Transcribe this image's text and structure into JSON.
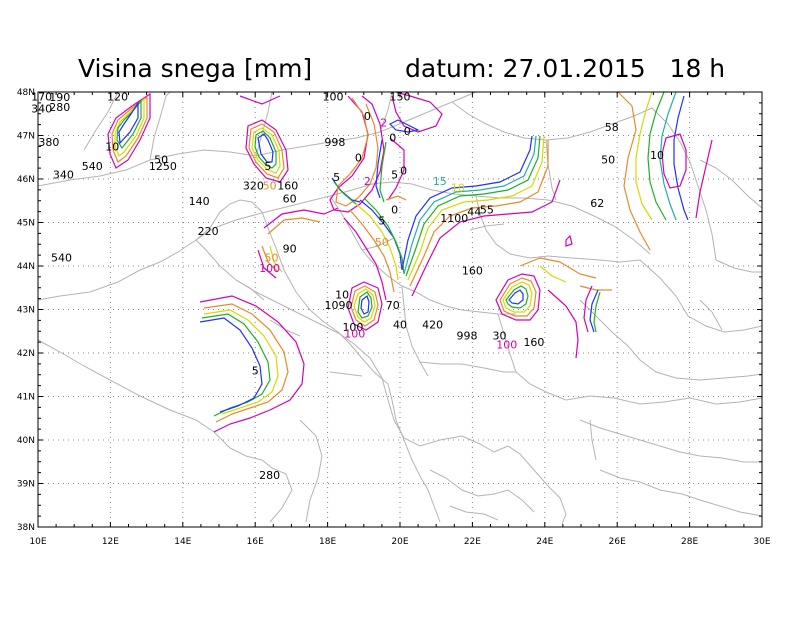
{
  "title": {
    "variable": "Visina snega [mm]",
    "date_label": "datum: 27.01.2015",
    "hour_label": "18 h"
  },
  "axes": {
    "lon_range": [
      10,
      30
    ],
    "lat_range": [
      38,
      48
    ],
    "x_ticks": [
      "10E",
      "12E",
      "14E",
      "16E",
      "18E",
      "20E",
      "22E",
      "24E",
      "26E",
      "28E",
      "30E"
    ],
    "y_ticks": [
      "38N",
      "39N",
      "40N",
      "41N",
      "42N",
      "43N",
      "44N",
      "45N",
      "46N",
      "47N",
      "48N"
    ],
    "grid": "dotted"
  },
  "colors": {
    "coast": "#b4b4b4",
    "c_magenta": "#d600b8",
    "c_orange": "#e88a2a",
    "c_yellow": "#d8d800",
    "c_green": "#20b020",
    "c_teal": "#20b0a0",
    "c_blue": "#2030ff",
    "c_purple": "#8a10d0"
  },
  "value_labels": [
    {
      "text": "190",
      "lon": 10.6,
      "lat": 47.88
    },
    {
      "text": "170",
      "lon": 10.1,
      "lat": 47.9
    },
    {
      "text": "340",
      "lon": 10.1,
      "lat": 47.62
    },
    {
      "text": "280",
      "lon": 10.6,
      "lat": 47.65
    },
    {
      "text": "120",
      "lon": 12.2,
      "lat": 47.9
    },
    {
      "text": "380",
      "lon": 10.3,
      "lat": 46.85
    },
    {
      "text": "540",
      "lon": 11.5,
      "lat": 46.3
    },
    {
      "text": "340",
      "lon": 10.7,
      "lat": 46.1
    },
    {
      "text": "50",
      "lon": 13.4,
      "lat": 46.45
    },
    {
      "text": "1250",
      "lon": 13.45,
      "lat": 46.3
    },
    {
      "text": "10",
      "lon": 12.05,
      "lat": 46.75
    },
    {
      "text": "140",
      "lon": 14.45,
      "lat": 45.5
    },
    {
      "text": "220",
      "lon": 14.7,
      "lat": 44.8
    },
    {
      "text": "540",
      "lon": 10.65,
      "lat": 44.2
    },
    {
      "text": "320",
      "lon": 15.95,
      "lat": 45.85
    },
    {
      "text": "160",
      "lon": 16.9,
      "lat": 45.85
    },
    {
      "text": "60",
      "lon": 16.95,
      "lat": 45.55
    },
    {
      "text": "5",
      "lon": 16.35,
      "lat": 46.3
    },
    {
      "text": "90",
      "lon": 16.95,
      "lat": 44.4
    },
    {
      "text": "998",
      "lon": 18.2,
      "lat": 46.85
    },
    {
      "text": "100",
      "lon": 18.15,
      "lat": 47.9
    },
    {
      "text": "150",
      "lon": 20.0,
      "lat": 47.9
    },
    {
      "text": "0",
      "lon": 19.1,
      "lat": 47.45
    },
    {
      "text": "0",
      "lon": 19.8,
      "lat": 46.95
    },
    {
      "text": "0",
      "lon": 20.2,
      "lat": 47.1
    },
    {
      "text": "0",
      "lon": 18.85,
      "lat": 46.5
    },
    {
      "text": "5",
      "lon": 18.25,
      "lat": 46.05
    },
    {
      "text": "5",
      "lon": 19.85,
      "lat": 46.1
    },
    {
      "text": "0",
      "lon": 20.1,
      "lat": 46.2
    },
    {
      "text": "0",
      "lon": 19.85,
      "lat": 45.3
    },
    {
      "text": "5",
      "lon": 19.5,
      "lat": 45.05
    },
    {
      "text": "10",
      "lon": 18.4,
      "lat": 43.35
    },
    {
      "text": "1090",
      "lon": 18.3,
      "lat": 43.1
    },
    {
      "text": "70",
      "lon": 19.8,
      "lat": 43.1
    },
    {
      "text": "40",
      "lon": 20.0,
      "lat": 42.65
    },
    {
      "text": "420",
      "lon": 20.9,
      "lat": 42.65
    },
    {
      "text": "100",
      "lon": 18.7,
      "lat": 42.6
    },
    {
      "text": "160",
      "lon": 22.0,
      "lat": 43.9
    },
    {
      "text": "1100",
      "lon": 21.5,
      "lat": 45.1
    },
    {
      "text": "44",
      "lon": 22.05,
      "lat": 45.25
    },
    {
      "text": "55",
      "lon": 22.4,
      "lat": 45.3
    },
    {
      "text": "998",
      "lon": 21.85,
      "lat": 42.4
    },
    {
      "text": "30",
      "lon": 22.75,
      "lat": 42.4
    },
    {
      "text": "160",
      "lon": 23.7,
      "lat": 42.25
    },
    {
      "text": "58",
      "lon": 25.85,
      "lat": 47.2
    },
    {
      "text": "50",
      "lon": 25.75,
      "lat": 46.45
    },
    {
      "text": "62",
      "lon": 25.45,
      "lat": 45.45
    },
    {
      "text": "280",
      "lon": 16.4,
      "lat": 39.2
    },
    {
      "text": "5",
      "lon": 16.0,
      "lat": 41.6
    }
  ],
  "colored_labels": [
    {
      "text": "15",
      "lon": 21.1,
      "lat": 45.95,
      "color": "#20b0a0"
    },
    {
      "text": "10",
      "lon": 21.6,
      "lat": 45.8,
      "color": "#d8d800"
    },
    {
      "text": "10",
      "lon": 27.1,
      "lat": 46.55,
      "color": "#000000"
    },
    {
      "text": "50",
      "lon": 16.4,
      "lat": 45.85,
      "color": "#e88a2a"
    },
    {
      "text": "50",
      "lon": 16.45,
      "lat": 44.2,
      "color": "#e88a2a"
    },
    {
      "text": "100",
      "lon": 16.4,
      "lat": 43.95,
      "color": "#d600b8"
    },
    {
      "text": "50",
      "lon": 19.5,
      "lat": 44.55,
      "color": "#e88a2a"
    },
    {
      "text": "100",
      "lon": 18.75,
      "lat": 42.45,
      "color": "#d600b8"
    },
    {
      "text": "100",
      "lon": 22.95,
      "lat": 42.2,
      "color": "#d600b8"
    },
    {
      "text": "2",
      "lon": 19.1,
      "lat": 45.95,
      "color": "#d600b8"
    },
    {
      "text": "2",
      "lon": 19.55,
      "lat": 47.3,
      "color": "#d600b8"
    }
  ]
}
